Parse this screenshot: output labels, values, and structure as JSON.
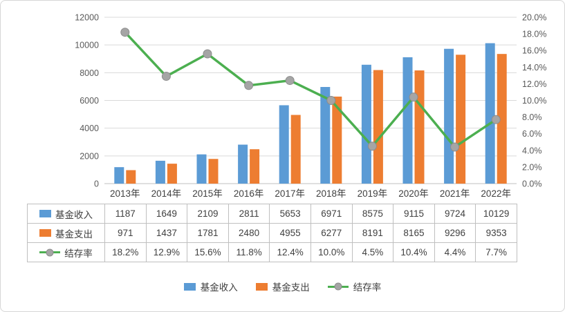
{
  "chart_data": {
    "type": "bar+line",
    "title": "",
    "categories": [
      "2013年",
      "2014年",
      "2015年",
      "2016年",
      "2017年",
      "2018年",
      "2019年",
      "2020年",
      "2021年",
      "2022年"
    ],
    "series": [
      {
        "name": "基金收入",
        "type": "bar",
        "axis": "left",
        "color": "#5B9BD5",
        "values": [
          1187,
          1649,
          2109,
          2811,
          5653,
          6971,
          8575,
          9115,
          9724,
          10129
        ]
      },
      {
        "name": "基金支出",
        "type": "bar",
        "axis": "left",
        "color": "#ED7D31",
        "values": [
          971,
          1437,
          1781,
          2480,
          4955,
          6277,
          8191,
          8165,
          9296,
          9353
        ]
      },
      {
        "name": "结存率",
        "type": "line",
        "axis": "right",
        "color": "#4CAF50",
        "marker_color": "#A5A5A5",
        "values_pct": [
          18.2,
          12.9,
          15.6,
          11.8,
          12.4,
          10.0,
          4.5,
          10.4,
          4.4,
          7.7
        ],
        "labels": [
          "18.2%",
          "12.9%",
          "15.6%",
          "11.8%",
          "12.4%",
          "10.0%",
          "4.5%",
          "10.4%",
          "4.4%",
          "7.7%"
        ]
      }
    ],
    "left_axis": {
      "min": 0,
      "max": 12000,
      "step": 2000,
      "ticks": [
        "0",
        "2000",
        "4000",
        "6000",
        "8000",
        "10000",
        "12000"
      ]
    },
    "right_axis": {
      "min": 0,
      "max": 20,
      "step": 2,
      "ticks": [
        "0.0%",
        "2.0%",
        "4.0%",
        "6.0%",
        "8.0%",
        "10.0%",
        "12.0%",
        "14.0%",
        "16.0%",
        "18.0%",
        "20.0%"
      ]
    },
    "grid": true,
    "legend_position": "bottom"
  },
  "table": {
    "rows": [
      {
        "label": "基金收入",
        "key": "income",
        "values": [
          "1187",
          "1649",
          "2109",
          "2811",
          "5653",
          "6971",
          "8575",
          "9115",
          "9724",
          "10129"
        ]
      },
      {
        "label": "基金支出",
        "key": "expense",
        "values": [
          "971",
          "1437",
          "1781",
          "2480",
          "4955",
          "6277",
          "8191",
          "8165",
          "9296",
          "9353"
        ]
      },
      {
        "label": "结存率",
        "key": "rate",
        "values": [
          "18.2%",
          "12.9%",
          "15.6%",
          "11.8%",
          "12.4%",
          "10.0%",
          "4.5%",
          "10.4%",
          "4.4%",
          "7.7%"
        ]
      }
    ]
  },
  "legend": {
    "items": [
      {
        "label": "基金收入",
        "type": "bar",
        "color": "#5B9BD5"
      },
      {
        "label": "基金支出",
        "type": "bar",
        "color": "#ED7D31"
      },
      {
        "label": "结存率",
        "type": "line",
        "color": "#4CAF50",
        "marker_color": "#A5A5A5"
      }
    ]
  },
  "colors": {
    "gridline": "#D9D9D9",
    "axis_line": "#BFBFBF",
    "axis_text": "#595959",
    "table_border": "#BFBFBF",
    "text": "#3F3F3F"
  }
}
